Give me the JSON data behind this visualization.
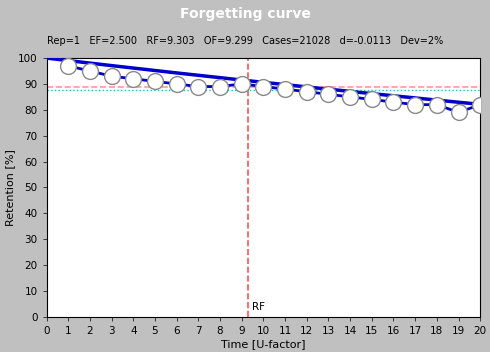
{
  "title": "Forgetting curve",
  "title_bar_color": "#000080",
  "title_text_color": "#ffffff",
  "info_text": "Rep=1   EF=2.500   RF=9.303   OF=9.299   Cases=21028   d=-0.0113   Dev=2%",
  "ylabel": "Retention [%]",
  "xlabel": "Time [U-factor]",
  "xlim": [
    0,
    20
  ],
  "ylim": [
    0,
    100
  ],
  "xticks": [
    0,
    1,
    2,
    3,
    4,
    5,
    6,
    7,
    8,
    9,
    10,
    11,
    12,
    13,
    14,
    15,
    16,
    17,
    18,
    19,
    20
  ],
  "yticks": [
    0,
    10,
    20,
    30,
    40,
    50,
    60,
    70,
    80,
    90,
    100
  ],
  "background_color": "#c0c0c0",
  "plot_bg_color": "#ffffff",
  "RF": 9.303,
  "OF_line_y": 89.0,
  "cyan_line_y": 87.5,
  "circle_data": [
    [
      1,
      97
    ],
    [
      2,
      95
    ],
    [
      3,
      93
    ],
    [
      4,
      92
    ],
    [
      5,
      91
    ],
    [
      6,
      90
    ],
    [
      7,
      89
    ],
    [
      8,
      89
    ],
    [
      9,
      90
    ],
    [
      10,
      89
    ],
    [
      11,
      88
    ],
    [
      12,
      87
    ],
    [
      13,
      86
    ],
    [
      14,
      85
    ],
    [
      15,
      84
    ],
    [
      16,
      83
    ],
    [
      17,
      82
    ],
    [
      18,
      82
    ],
    [
      19,
      79
    ],
    [
      20,
      82
    ]
  ],
  "blue_line_color": "#0000cc",
  "red_vline_color": "#ff5555",
  "pink_hline_color": "#ff9999",
  "cyan_hline_color": "#00cccc",
  "circle_color": "#ffffff",
  "circle_edge_color": "#888888",
  "circle_size": 130,
  "curve_k": -0.00985
}
